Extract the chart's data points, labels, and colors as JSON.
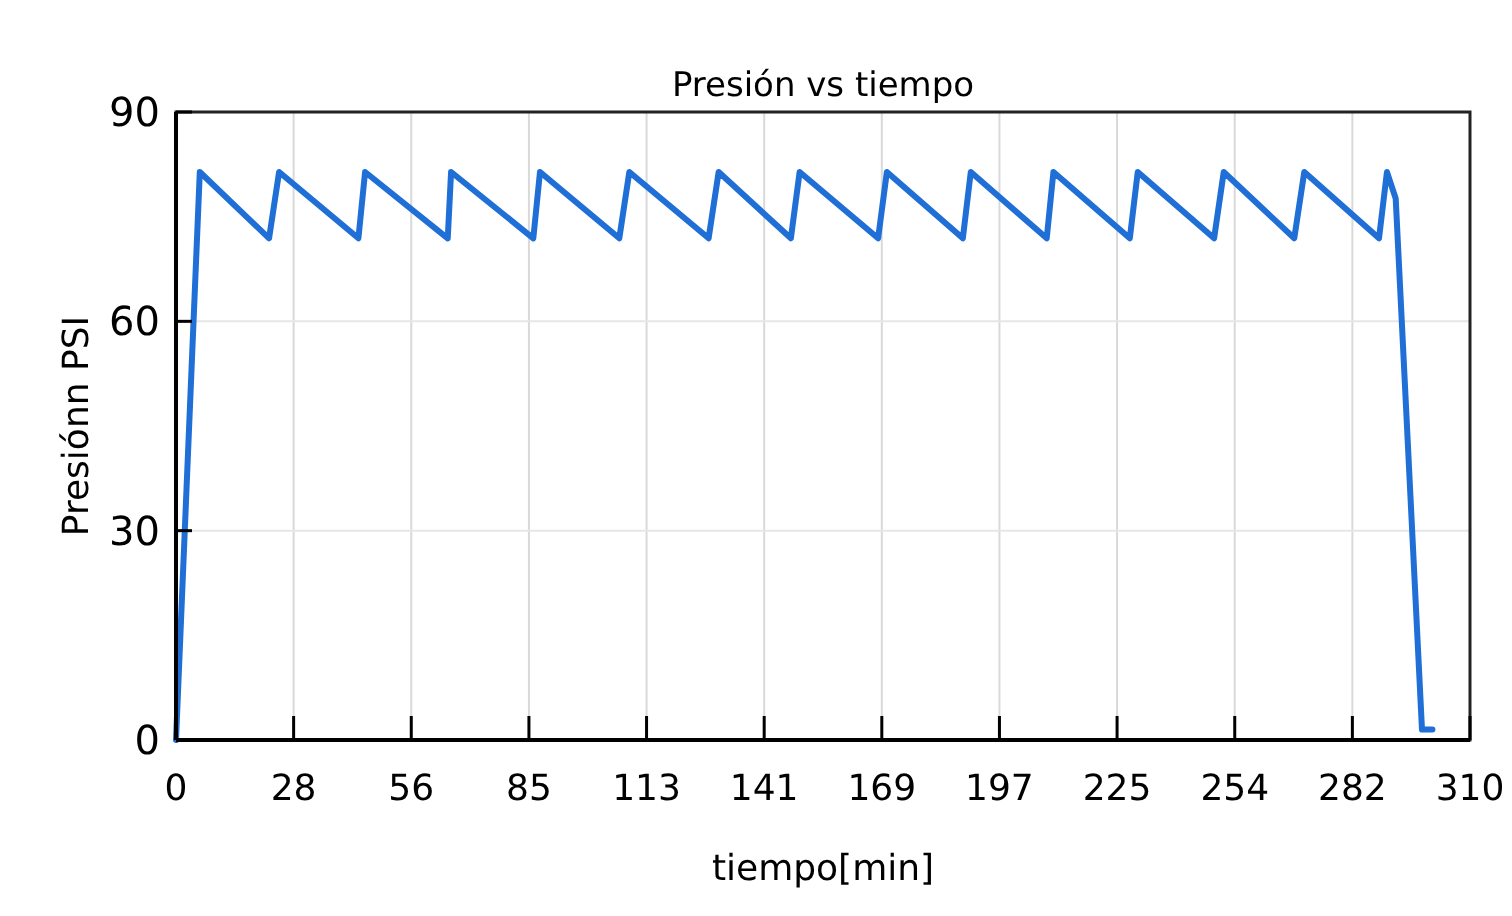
{
  "chart_data": {
    "type": "line",
    "title": "Presión vs tiempo",
    "xlabel": "tiempo[min]",
    "ylabel": "Presiónn PSI",
    "xlim": [
      0,
      310
    ],
    "ylim": [
      0,
      90
    ],
    "xticks": [
      0,
      {
        "value": 28.18,
        "label": "28"
      },
      {
        "value": 56.36,
        "label": "56"
      },
      {
        "value": 84.55,
        "label": "85"
      },
      {
        "value": 112.73,
        "label": "113"
      },
      {
        "value": 140.91,
        "label": "141"
      },
      {
        "value": 169.09,
        "label": "169"
      },
      {
        "value": 197.27,
        "label": "197"
      },
      {
        "value": 225.45,
        "label": "225"
      },
      {
        "value": 253.64,
        "label": "254"
      },
      {
        "value": 281.82,
        "label": "282"
      },
      310
    ],
    "yticks": [
      0,
      30,
      60,
      90
    ],
    "grid": true,
    "marker": "none",
    "line_style": "solid",
    "series": [
      {
        "color": "#1f6fd6",
        "x": [
          0,
          5.7,
          22.3,
          24.7,
          43.7,
          45.3,
          65.1,
          65.9,
          85.6,
          87.2,
          106.2,
          108.6,
          127.6,
          130.0,
          147.3,
          149.4,
          168.2,
          170.3,
          188.5,
          190.4,
          208.6,
          210.2,
          228.5,
          230.4,
          248.7,
          251.0,
          267.9,
          270.3,
          288.2,
          290.1,
          292.2,
          298.5,
          301
        ],
        "values": [
          0,
          81.4,
          71.9,
          81.4,
          71.9,
          81.4,
          71.9,
          81.4,
          71.9,
          81.4,
          71.9,
          81.4,
          71.9,
          81.4,
          71.9,
          81.4,
          71.9,
          81.4,
          71.9,
          81.4,
          71.9,
          81.4,
          71.9,
          81.4,
          71.9,
          81.4,
          71.9,
          81.4,
          71.9,
          81.4,
          77.6,
          1.5,
          1.5
        ]
      }
    ]
  }
}
